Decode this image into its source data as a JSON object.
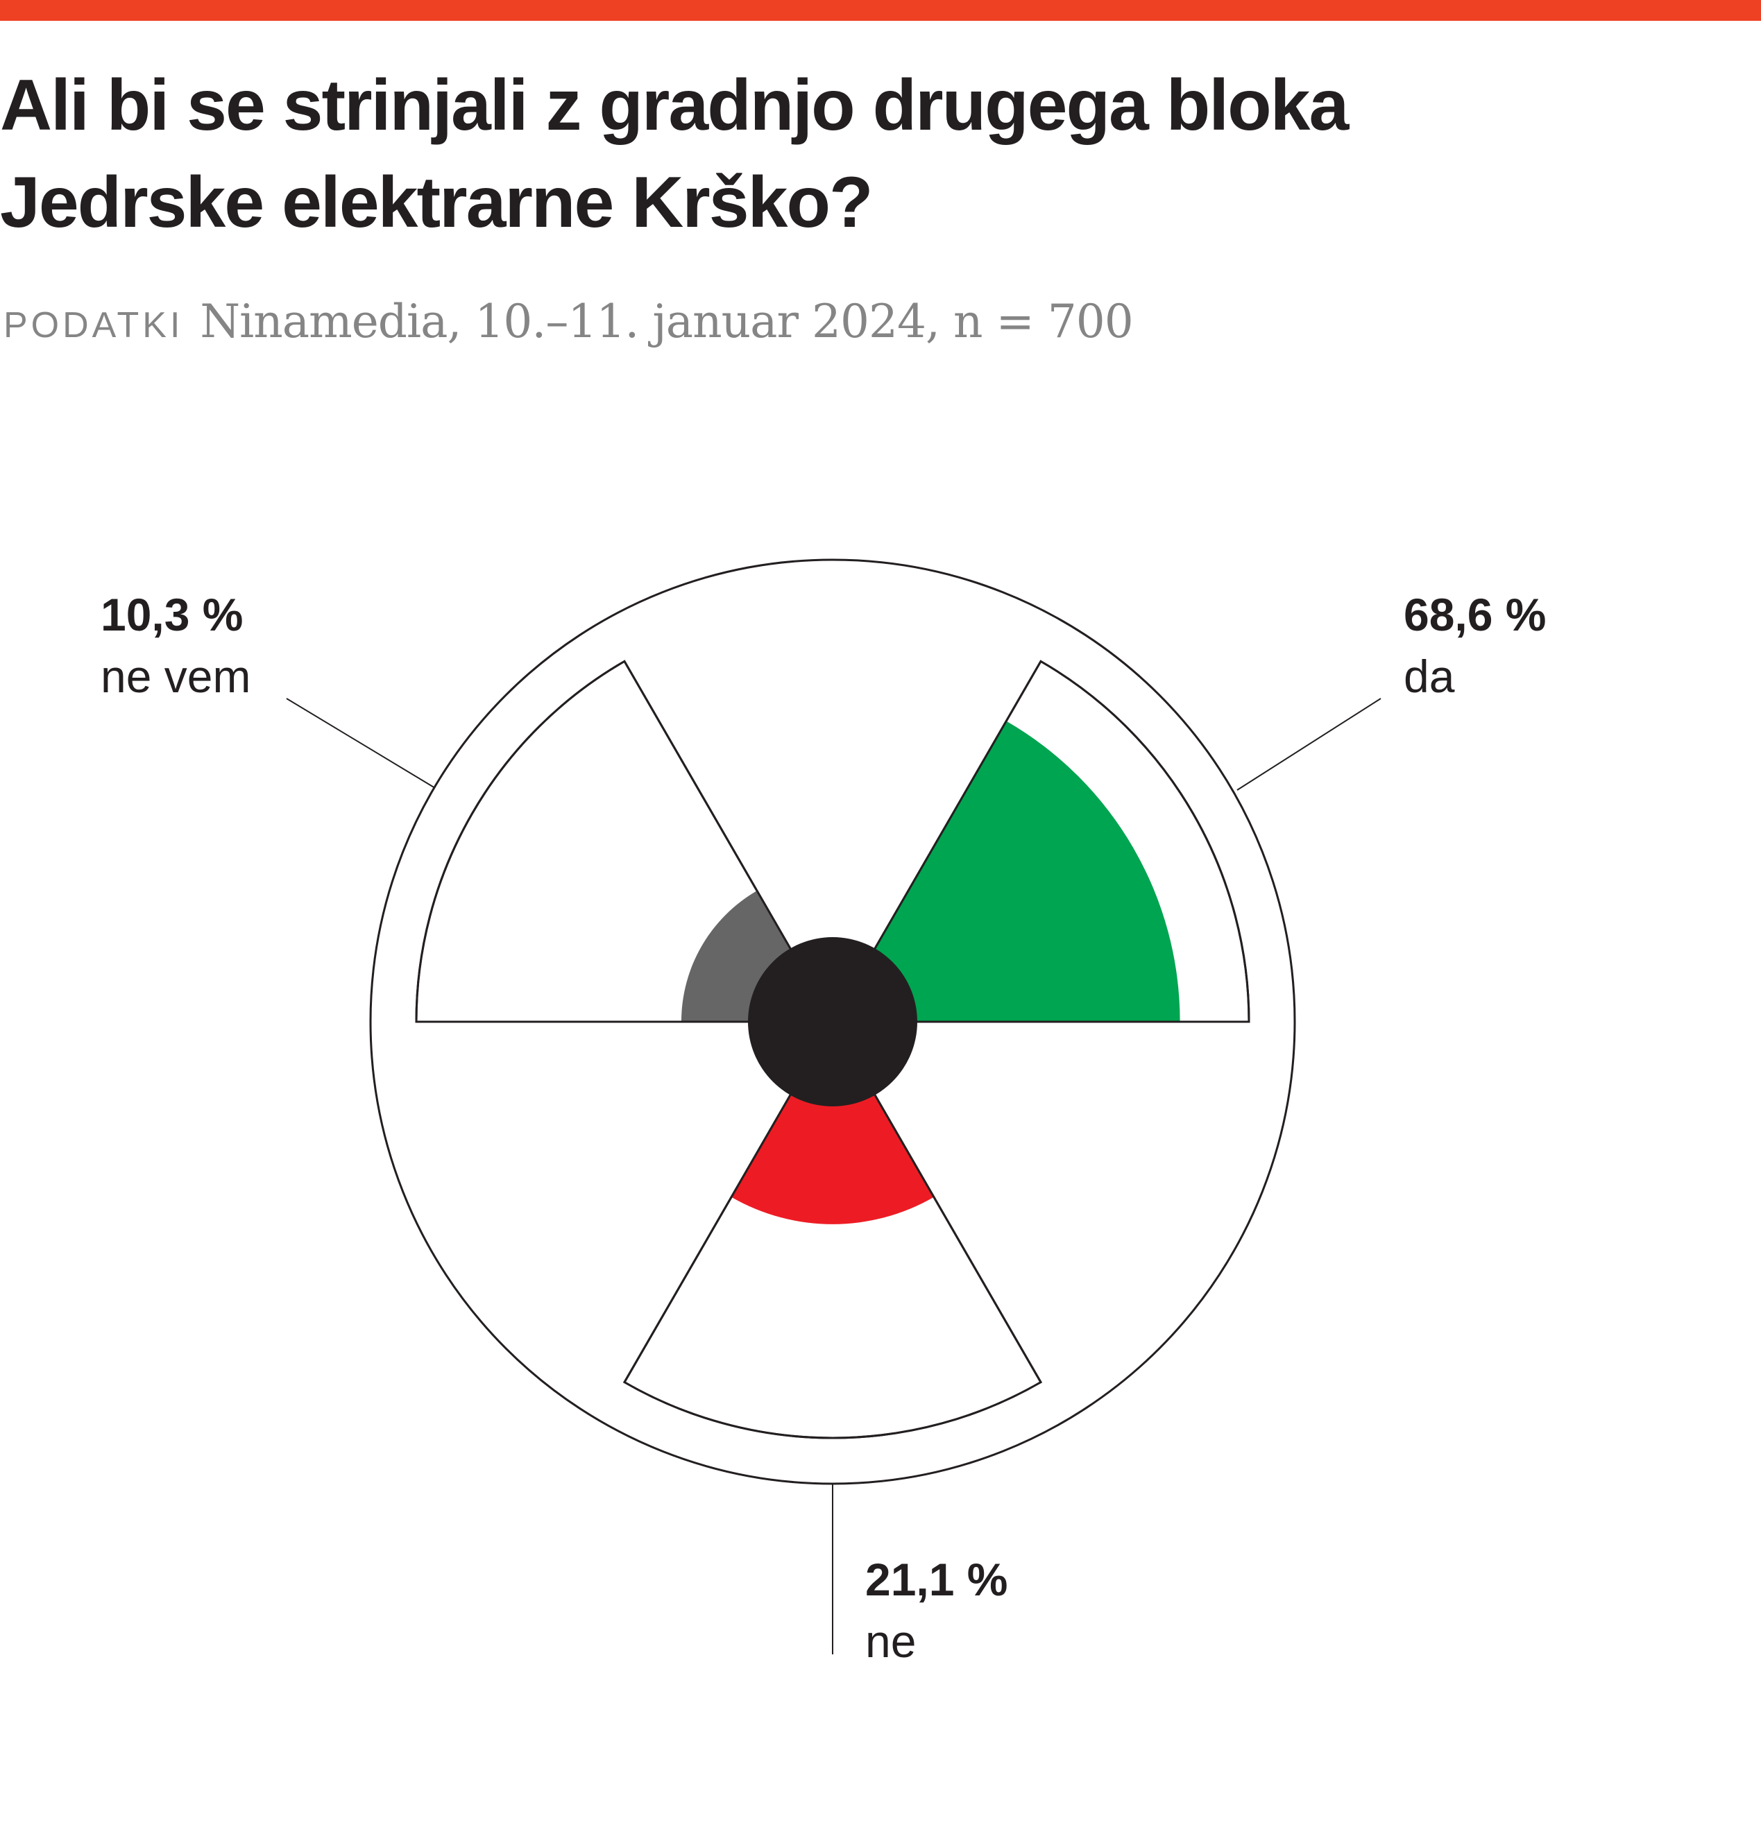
{
  "colors": {
    "accent_bar": "#ee4023",
    "da": "#00a551",
    "ne": "#ed1c24",
    "ne_vem": "#666666",
    "center": "#231f20",
    "stroke": "#231f20"
  },
  "header": {
    "title_line1": "Ali bi se strinjali z gradnjo drugega bloka",
    "title_line2": "Jedrske elektrarne Krško?",
    "source_label": "PODATKI",
    "source_text": "Ninamedia, 10.–11. januar 2024, n = 700"
  },
  "chart_data": {
    "type": "pie",
    "title": "Ali bi se strinjali z gradnjo drugega bloka Jedrske elektrarne Krško?",
    "categories": [
      "da",
      "ne",
      "ne vem"
    ],
    "values": [
      68.6,
      21.1,
      10.3
    ],
    "unit": "%",
    "labels": [
      {
        "percent": "68,6 %",
        "label": "da"
      },
      {
        "percent": "21,1 %",
        "label": "ne"
      },
      {
        "percent": "10,3 %",
        "label": "ne vem"
      }
    ],
    "colors": [
      "#00a551",
      "#ed1c24",
      "#666666"
    ],
    "legend": "none"
  }
}
